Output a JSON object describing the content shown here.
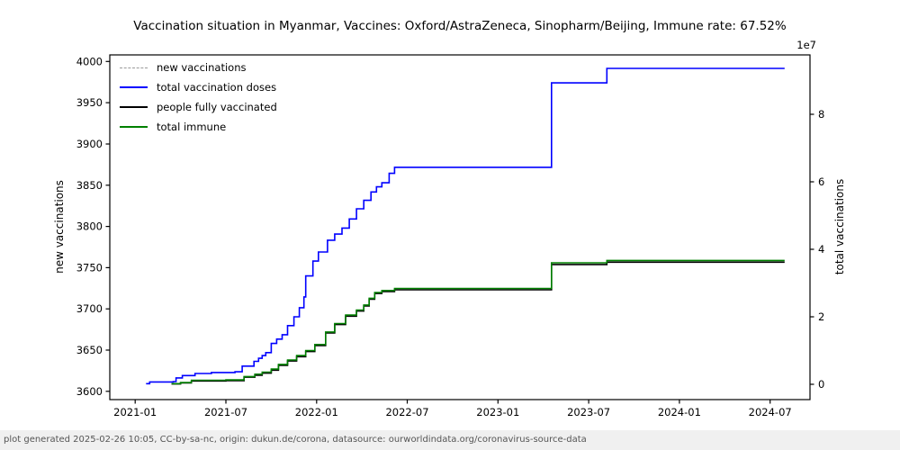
{
  "title": "Vaccination situation in Myanmar, Vaccines: Oxford/AstraZeneca, Sinopharm/Beijing, Immune rate: 67.52%",
  "footer": "plot generated 2025-02-26 10:05, CC-by-sa-nc, origin: dukun.de/corona, datasource: ourworldindata.org/coronavirus-source-data",
  "chart_data": {
    "type": "line",
    "title": "Vaccination situation in Myanmar, Vaccines: Oxford/AstraZeneca, Sinopharm/Beijing, Immune rate: 67.52%",
    "x_axis": {
      "range": [
        2020.86,
        2024.72
      ],
      "tick_positions": [
        2021.0,
        2021.5,
        2022.0,
        2022.5,
        2023.0,
        2023.5,
        2024.0,
        2024.5
      ],
      "tick_labels": [
        "2021-01",
        "2021-07",
        "2022-01",
        "2022-07",
        "2023-01",
        "2023-07",
        "2024-01",
        "2024-07"
      ]
    },
    "left_axis": {
      "label": "new vaccinations",
      "range": [
        3590,
        4008
      ],
      "ticks": [
        3600,
        3650,
        3700,
        3750,
        3800,
        3850,
        3900,
        3950,
        4000
      ]
    },
    "right_axis": {
      "label": "total vaccinations",
      "offset_label": "1e7",
      "unit_multiplier": 10000000,
      "range": [
        -0.453,
        9.76
      ],
      "ticks": [
        0,
        2,
        4,
        6,
        8
      ]
    },
    "grid": false,
    "legend": {
      "position": "upper-left",
      "frame": false,
      "entries": [
        {
          "label": "new vaccinations",
          "color": "#9a9a9a",
          "style": "dashed"
        },
        {
          "label": "total vaccination doses",
          "color": "#0000ff",
          "style": "solid"
        },
        {
          "label": "people fully vaccinated",
          "color": "#000000",
          "style": "solid"
        },
        {
          "label": "total immune",
          "color": "#008000",
          "style": "solid"
        }
      ]
    },
    "series": [
      {
        "name": "new vaccinations",
        "axis": "left",
        "color": "#9a9a9a",
        "style": "dashed",
        "no_visible_data": true,
        "points": []
      },
      {
        "name": "total vaccination doses",
        "axis": "right",
        "color": "#0000ff",
        "style": "solid",
        "values_in": "1e7",
        "points": [
          [
            2021.06,
            0.02
          ],
          [
            2021.08,
            0.07
          ],
          [
            2021.21,
            0.08
          ],
          [
            2021.225,
            0.19
          ],
          [
            2021.26,
            0.26
          ],
          [
            2021.33,
            0.32
          ],
          [
            2021.42,
            0.35
          ],
          [
            2021.55,
            0.37
          ],
          [
            2021.59,
            0.54
          ],
          [
            2021.655,
            0.68
          ],
          [
            2021.68,
            0.77
          ],
          [
            2021.7,
            0.85
          ],
          [
            2021.72,
            0.94
          ],
          [
            2021.75,
            1.21
          ],
          [
            2021.78,
            1.34
          ],
          [
            2021.81,
            1.47
          ],
          [
            2021.84,
            1.74
          ],
          [
            2021.875,
            2.0
          ],
          [
            2021.905,
            2.27
          ],
          [
            2021.93,
            2.59
          ],
          [
            2021.94,
            3.21
          ],
          [
            2021.98,
            3.65
          ],
          [
            2022.01,
            3.92
          ],
          [
            2022.06,
            4.27
          ],
          [
            2022.1,
            4.45
          ],
          [
            2022.14,
            4.63
          ],
          [
            2022.18,
            4.9
          ],
          [
            2022.22,
            5.2
          ],
          [
            2022.26,
            5.45
          ],
          [
            2022.3,
            5.7
          ],
          [
            2022.33,
            5.85
          ],
          [
            2022.36,
            5.97
          ],
          [
            2022.4,
            6.25
          ],
          [
            2022.43,
            6.43
          ],
          [
            2023.29,
            6.43
          ],
          [
            2023.295,
            8.93
          ],
          [
            2023.59,
            8.93
          ],
          [
            2023.6,
            9.36
          ],
          [
            2024.58,
            9.36
          ]
        ]
      },
      {
        "name": "people fully vaccinated",
        "axis": "right",
        "color": "#000000",
        "style": "solid",
        "values_in": "1e7",
        "points": [
          [
            2021.2,
            0.01
          ],
          [
            2021.25,
            0.04
          ],
          [
            2021.31,
            0.1
          ],
          [
            2021.5,
            0.11
          ],
          [
            2021.6,
            0.21
          ],
          [
            2021.66,
            0.27
          ],
          [
            2021.7,
            0.33
          ],
          [
            2021.75,
            0.42
          ],
          [
            2021.79,
            0.56
          ],
          [
            2021.84,
            0.69
          ],
          [
            2021.89,
            0.82
          ],
          [
            2021.94,
            0.97
          ],
          [
            2021.99,
            1.15
          ],
          [
            2022.05,
            1.52
          ],
          [
            2022.1,
            1.77
          ],
          [
            2022.16,
            2.02
          ],
          [
            2022.22,
            2.17
          ],
          [
            2022.26,
            2.32
          ],
          [
            2022.29,
            2.52
          ],
          [
            2022.32,
            2.69
          ],
          [
            2022.36,
            2.75
          ],
          [
            2022.43,
            2.8
          ],
          [
            2023.29,
            2.8
          ],
          [
            2023.295,
            3.55
          ],
          [
            2023.59,
            3.55
          ],
          [
            2023.6,
            3.62
          ],
          [
            2024.58,
            3.62
          ]
        ]
      },
      {
        "name": "total immune",
        "axis": "right",
        "color": "#008000",
        "style": "solid",
        "values_in": "1e7",
        "points": [
          [
            2021.2,
            0.02
          ],
          [
            2021.25,
            0.05
          ],
          [
            2021.31,
            0.12
          ],
          [
            2021.5,
            0.13
          ],
          [
            2021.6,
            0.23
          ],
          [
            2021.66,
            0.3
          ],
          [
            2021.7,
            0.36
          ],
          [
            2021.75,
            0.45
          ],
          [
            2021.79,
            0.59
          ],
          [
            2021.84,
            0.72
          ],
          [
            2021.89,
            0.85
          ],
          [
            2021.94,
            1.0
          ],
          [
            2021.99,
            1.18
          ],
          [
            2022.05,
            1.55
          ],
          [
            2022.1,
            1.8
          ],
          [
            2022.16,
            2.05
          ],
          [
            2022.22,
            2.2
          ],
          [
            2022.26,
            2.35
          ],
          [
            2022.29,
            2.55
          ],
          [
            2022.32,
            2.72
          ],
          [
            2022.36,
            2.78
          ],
          [
            2022.43,
            2.84
          ],
          [
            2023.29,
            2.84
          ],
          [
            2023.295,
            3.6
          ],
          [
            2023.59,
            3.6
          ],
          [
            2023.6,
            3.67
          ],
          [
            2024.58,
            3.67
          ]
        ]
      }
    ]
  }
}
